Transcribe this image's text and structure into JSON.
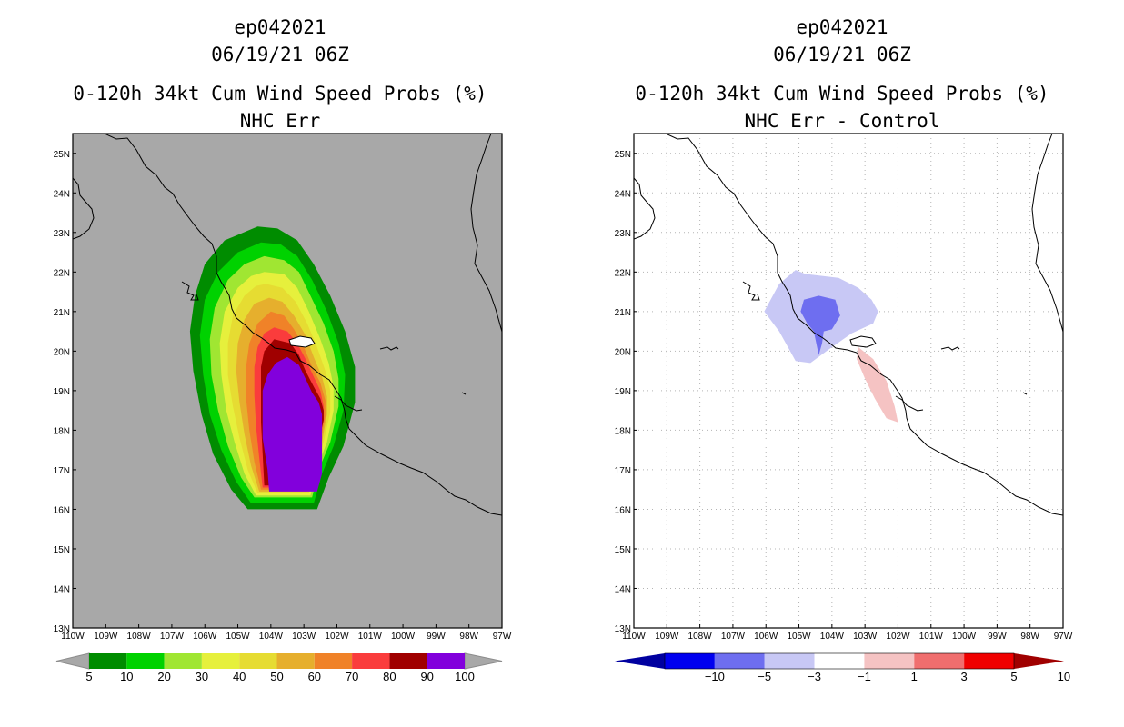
{
  "chart_data": [
    {
      "type": "heatmap",
      "title_lines": [
        "ep042021",
        "06/19/21 06Z",
        "0-120h 34kt Cum Wind Speed Probs (%)",
        "NHC Err"
      ],
      "x_ticks": [
        "110W",
        "109W",
        "108W",
        "107W",
        "106W",
        "105W",
        "104W",
        "103W",
        "102W",
        "101W",
        "100W",
        "99W",
        "98W",
        "97W"
      ],
      "y_ticks": [
        "13N",
        "14N",
        "15N",
        "16N",
        "17N",
        "18N",
        "19N",
        "20N",
        "21N",
        "22N",
        "23N",
        "24N",
        "25N"
      ],
      "xlim": [
        -110,
        -97
      ],
      "ylim": [
        13,
        25.5
      ],
      "background": "#a8a8a8",
      "colorbar": {
        "labels": [
          "5",
          "10",
          "20",
          "30",
          "40",
          "50",
          "60",
          "70",
          "80",
          "90",
          "100"
        ],
        "colors": [
          "#008c00",
          "#00d200",
          "#a0e632",
          "#e6f03c",
          "#e6dc32",
          "#e6af2d",
          "#f08228",
          "#fa3c3c",
          "#a00000",
          "#8200dc"
        ]
      },
      "contours": [
        {
          "level": 5,
          "color": "#008c00",
          "points": [
            [
              -104.4,
              23.15
            ],
            [
              -103.8,
              23.1
            ],
            [
              -103.2,
              22.8
            ],
            [
              -102.7,
              22.2
            ],
            [
              -102.2,
              21.4
            ],
            [
              -101.75,
              20.5
            ],
            [
              -101.45,
              19.6
            ],
            [
              -101.45,
              18.7
            ],
            [
              -101.8,
              17.6
            ],
            [
              -102.25,
              16.8
            ],
            [
              -102.6,
              16.0
            ],
            [
              -104.7,
              16.0
            ],
            [
              -105.2,
              16.5
            ],
            [
              -105.75,
              17.4
            ],
            [
              -106.1,
              18.4
            ],
            [
              -106.35,
              19.5
            ],
            [
              -106.45,
              20.5
            ],
            [
              -106.3,
              21.4
            ],
            [
              -106.0,
              22.2
            ],
            [
              -105.4,
              22.8
            ]
          ]
        },
        {
          "level": 10,
          "color": "#00d200",
          "points": [
            [
              -104.3,
              22.75
            ],
            [
              -103.7,
              22.7
            ],
            [
              -103.2,
              22.4
            ],
            [
              -102.75,
              21.8
            ],
            [
              -102.3,
              21.0
            ],
            [
              -101.95,
              20.2
            ],
            [
              -101.75,
              19.4
            ],
            [
              -101.8,
              18.5
            ],
            [
              -102.1,
              17.6
            ],
            [
              -102.45,
              16.9
            ],
            [
              -102.7,
              16.15
            ],
            [
              -104.6,
              16.15
            ],
            [
              -105.05,
              16.7
            ],
            [
              -105.5,
              17.5
            ],
            [
              -105.85,
              18.4
            ],
            [
              -106.05,
              19.4
            ],
            [
              -106.15,
              20.4
            ],
            [
              -106.0,
              21.3
            ],
            [
              -105.6,
              22.0
            ],
            [
              -105.0,
              22.5
            ]
          ]
        },
        {
          "level": 20,
          "color": "#a0e632",
          "points": [
            [
              -104.2,
              22.4
            ],
            [
              -103.6,
              22.3
            ],
            [
              -103.15,
              22.0
            ],
            [
              -102.8,
              21.4
            ],
            [
              -102.4,
              20.7
            ],
            [
              -102.1,
              20.0
            ],
            [
              -101.95,
              19.3
            ],
            [
              -101.95,
              18.6
            ],
            [
              -102.2,
              17.7
            ],
            [
              -102.55,
              17.0
            ],
            [
              -102.75,
              16.3
            ],
            [
              -104.5,
              16.3
            ],
            [
              -104.9,
              16.8
            ],
            [
              -105.3,
              17.6
            ],
            [
              -105.6,
              18.5
            ],
            [
              -105.8,
              19.4
            ],
            [
              -105.85,
              20.3
            ],
            [
              -105.7,
              21.1
            ],
            [
              -105.3,
              21.8
            ],
            [
              -104.8,
              22.2
            ]
          ]
        },
        {
          "level": 30,
          "color": "#e6f03c",
          "points": [
            [
              -104.2,
              22.0
            ],
            [
              -103.6,
              21.95
            ],
            [
              -103.2,
              21.6
            ],
            [
              -102.85,
              21.0
            ],
            [
              -102.5,
              20.3
            ],
            [
              -102.25,
              19.7
            ],
            [
              -102.1,
              19.1
            ],
            [
              -102.1,
              18.5
            ],
            [
              -102.3,
              17.7
            ],
            [
              -102.6,
              17.05
            ],
            [
              -102.8,
              16.35
            ],
            [
              -104.45,
              16.35
            ],
            [
              -104.8,
              16.9
            ],
            [
              -105.1,
              17.7
            ],
            [
              -105.35,
              18.5
            ],
            [
              -105.5,
              19.4
            ],
            [
              -105.55,
              20.2
            ],
            [
              -105.4,
              21.0
            ],
            [
              -105.0,
              21.6
            ],
            [
              -104.6,
              21.9
            ]
          ]
        },
        {
          "level": 40,
          "color": "#e6dc32",
          "points": [
            [
              -104.15,
              21.7
            ],
            [
              -103.65,
              21.6
            ],
            [
              -103.25,
              21.25
            ],
            [
              -102.9,
              20.7
            ],
            [
              -102.6,
              20.1
            ],
            [
              -102.35,
              19.5
            ],
            [
              -102.2,
              19.0
            ],
            [
              -102.2,
              18.45
            ],
            [
              -102.4,
              17.7
            ],
            [
              -102.65,
              17.05
            ],
            [
              -102.85,
              16.4
            ],
            [
              -104.4,
              16.4
            ],
            [
              -104.7,
              17.0
            ],
            [
              -104.95,
              17.8
            ],
            [
              -105.15,
              18.6
            ],
            [
              -105.3,
              19.4
            ],
            [
              -105.3,
              20.2
            ],
            [
              -105.15,
              20.9
            ],
            [
              -104.8,
              21.4
            ],
            [
              -104.45,
              21.65
            ]
          ]
        },
        {
          "level": 50,
          "color": "#e6af2d",
          "points": [
            [
              -104.05,
              21.35
            ],
            [
              -103.65,
              21.25
            ],
            [
              -103.3,
              20.9
            ],
            [
              -102.95,
              20.4
            ],
            [
              -102.7,
              19.85
            ],
            [
              -102.45,
              19.35
            ],
            [
              -102.3,
              18.85
            ],
            [
              -102.3,
              18.4
            ],
            [
              -102.45,
              17.7
            ],
            [
              -102.7,
              17.05
            ],
            [
              -102.9,
              16.45
            ],
            [
              -104.35,
              16.45
            ],
            [
              -104.6,
              17.1
            ],
            [
              -104.8,
              17.9
            ],
            [
              -104.95,
              18.7
            ],
            [
              -105.05,
              19.5
            ],
            [
              -105.0,
              20.2
            ],
            [
              -104.8,
              20.8
            ],
            [
              -104.5,
              21.2
            ]
          ]
        },
        {
          "level": 60,
          "color": "#f08228",
          "points": [
            [
              -104.0,
              21.0
            ],
            [
              -103.6,
              20.9
            ],
            [
              -103.3,
              20.55
            ],
            [
              -103.0,
              20.1
            ],
            [
              -102.75,
              19.6
            ],
            [
              -102.5,
              19.2
            ],
            [
              -102.35,
              18.75
            ],
            [
              -102.35,
              18.35
            ],
            [
              -102.5,
              17.7
            ],
            [
              -102.75,
              17.05
            ],
            [
              -102.9,
              16.5
            ],
            [
              -104.3,
              16.5
            ],
            [
              -104.5,
              17.2
            ],
            [
              -104.65,
              18.0
            ],
            [
              -104.75,
              18.8
            ],
            [
              -104.75,
              19.6
            ],
            [
              -104.65,
              20.2
            ],
            [
              -104.4,
              20.7
            ]
          ]
        },
        {
          "level": 70,
          "color": "#fa3c3c",
          "points": [
            [
              -103.9,
              20.6
            ],
            [
              -103.5,
              20.5
            ],
            [
              -103.2,
              20.2
            ],
            [
              -102.95,
              19.8
            ],
            [
              -102.7,
              19.35
            ],
            [
              -102.5,
              19.0
            ],
            [
              -102.4,
              18.6
            ],
            [
              -102.4,
              18.3
            ],
            [
              -102.55,
              17.7
            ],
            [
              -102.75,
              17.05
            ],
            [
              -102.95,
              16.55
            ],
            [
              -104.25,
              16.55
            ],
            [
              -104.35,
              17.3
            ],
            [
              -104.45,
              18.1
            ],
            [
              -104.5,
              18.9
            ],
            [
              -104.5,
              19.6
            ],
            [
              -104.4,
              20.1
            ],
            [
              -104.2,
              20.45
            ]
          ]
        },
        {
          "level": 80,
          "color": "#a00000",
          "points": [
            [
              -103.9,
              20.3
            ],
            [
              -103.4,
              20.2
            ],
            [
              -103.15,
              19.9
            ],
            [
              -102.95,
              19.5
            ],
            [
              -102.7,
              19.1
            ],
            [
              -102.5,
              18.8
            ],
            [
              -102.4,
              18.5
            ],
            [
              -102.4,
              18.25
            ],
            [
              -102.55,
              17.7
            ],
            [
              -102.75,
              17.05
            ],
            [
              -102.95,
              16.6
            ],
            [
              -104.2,
              16.6
            ],
            [
              -104.25,
              17.4
            ],
            [
              -104.3,
              18.2
            ],
            [
              -104.3,
              19.0
            ],
            [
              -104.3,
              19.6
            ],
            [
              -104.2,
              20.0
            ]
          ]
        },
        {
          "level": 90,
          "color": "#8200dc",
          "points": [
            [
              -103.5,
              19.85
            ],
            [
              -103.15,
              19.65
            ],
            [
              -102.95,
              19.3
            ],
            [
              -102.75,
              18.95
            ],
            [
              -102.55,
              18.7
            ],
            [
              -102.45,
              18.4
            ],
            [
              -102.45,
              17.9
            ],
            [
              -102.45,
              17.4
            ],
            [
              -102.45,
              16.9
            ],
            [
              -102.6,
              16.45
            ],
            [
              -104.05,
              16.45
            ],
            [
              -104.1,
              17.0
            ],
            [
              -104.25,
              17.8
            ],
            [
              -104.25,
              18.5
            ],
            [
              -104.25,
              19.0
            ],
            [
              -104.1,
              19.4
            ],
            [
              -103.85,
              19.7
            ]
          ]
        }
      ]
    },
    {
      "type": "heatmap",
      "title_lines": [
        "ep042021",
        "06/19/21 06Z",
        "0-120h 34kt Cum Wind Speed Probs (%)",
        "NHC Err - Control"
      ],
      "x_ticks": [
        "110W",
        "109W",
        "108W",
        "107W",
        "106W",
        "105W",
        "104W",
        "103W",
        "102W",
        "101W",
        "100W",
        "99W",
        "98W",
        "97W"
      ],
      "y_ticks": [
        "13N",
        "14N",
        "15N",
        "16N",
        "17N",
        "18N",
        "19N",
        "20N",
        "21N",
        "22N",
        "23N",
        "24N",
        "25N"
      ],
      "xlim": [
        -110,
        -97
      ],
      "ylim": [
        13,
        25.5
      ],
      "background": "#ffffff",
      "grid": true,
      "colorbar": {
        "labels": [
          "-10",
          "-5",
          "-3",
          "-1",
          "1",
          "3",
          "5",
          "10"
        ],
        "colors": [
          "#0000a0",
          "#0000f0",
          "#6e6ef0",
          "#c8c8f5",
          "#ffffff",
          "#f5c3c3",
          "#f06e6e",
          "#f00000",
          "#a00000"
        ]
      },
      "contours": [
        {
          "level": -1,
          "color": "#c8c8f5",
          "points": [
            [
              -104.8,
              21.95
            ],
            [
              -103.8,
              21.85
            ],
            [
              -103.2,
              21.6
            ],
            [
              -102.8,
              21.3
            ],
            [
              -102.6,
              21.0
            ],
            [
              -102.75,
              20.7
            ],
            [
              -103.4,
              20.45
            ],
            [
              -104.0,
              20.1
            ],
            [
              -104.65,
              19.7
            ],
            [
              -105.1,
              19.75
            ],
            [
              -105.6,
              20.5
            ],
            [
              -106.05,
              21.0
            ],
            [
              -105.6,
              21.7
            ],
            [
              -105.1,
              22.05
            ]
          ]
        },
        {
          "level": -3,
          "color": "#6e6ef0",
          "points": [
            [
              -104.4,
              21.4
            ],
            [
              -103.9,
              21.3
            ],
            [
              -103.75,
              20.9
            ],
            [
              -104.0,
              20.55
            ],
            [
              -104.25,
              20.5
            ],
            [
              -104.3,
              20.2
            ],
            [
              -104.4,
              19.9
            ],
            [
              -104.55,
              20.5
            ],
            [
              -104.75,
              20.7
            ],
            [
              -104.95,
              21.0
            ],
            [
              -104.85,
              21.3
            ]
          ]
        },
        {
          "level": 1,
          "color": "#f5c3c3",
          "points": [
            [
              -103.2,
              20.1
            ],
            [
              -102.75,
              19.8
            ],
            [
              -102.35,
              19.25
            ],
            [
              -102.1,
              18.6
            ],
            [
              -102.0,
              18.2
            ],
            [
              -102.35,
              18.3
            ],
            [
              -102.7,
              18.8
            ],
            [
              -103.0,
              19.3
            ],
            [
              -103.25,
              19.8
            ]
          ]
        }
      ]
    }
  ]
}
